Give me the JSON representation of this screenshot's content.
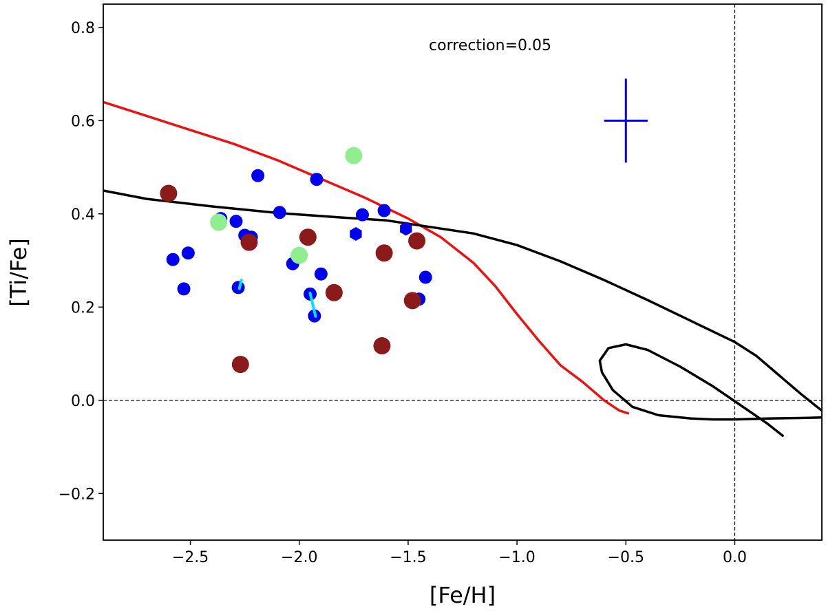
{
  "chart_data": {
    "type": "scatter",
    "title": "",
    "xlabel": "[Fe/H]",
    "ylabel": "[Ti/Fe]",
    "xlim": [
      -2.9,
      0.4
    ],
    "ylim": [
      -0.3,
      0.85
    ],
    "xticks": [
      -2.5,
      -2.0,
      -1.5,
      -1.0,
      -0.5,
      0.0
    ],
    "xtick_labels": [
      "−2.5",
      "−2.0",
      "−1.5",
      "−1.0",
      "−0.5",
      "0.0"
    ],
    "yticks": [
      -0.2,
      0.0,
      0.2,
      0.4,
      0.6,
      0.8
    ],
    "ytick_labels": [
      "−0.2",
      "0.0",
      "0.2",
      "0.4",
      "0.6",
      "0.8"
    ],
    "annotation": "correction=0.05",
    "reference_lines": {
      "x": 0.0,
      "y": 0.0
    },
    "colors": {
      "blue": "#0000ee",
      "darkred": "#8b1a1a",
      "lightgreen": "#90ee90",
      "cyan": "#00e5ff",
      "red": "#ee1111",
      "black": "#000000"
    },
    "series": [
      {
        "name": "blue-circles",
        "marker": "circle",
        "color": "blue",
        "points": [
          [
            -2.58,
            0.302
          ],
          [
            -2.51,
            0.316
          ],
          [
            -2.53,
            0.239
          ],
          [
            -2.36,
            0.39
          ],
          [
            -2.29,
            0.384
          ],
          [
            -2.19,
            0.482
          ],
          [
            -2.25,
            0.354
          ],
          [
            -2.22,
            0.35
          ],
          [
            -2.28,
            0.242
          ],
          [
            -2.09,
            0.403
          ],
          [
            -2.03,
            0.293
          ],
          [
            -1.92,
            0.474
          ],
          [
            -1.9,
            0.271
          ],
          [
            -1.95,
            0.228
          ],
          [
            -1.93,
            0.181
          ],
          [
            -1.71,
            0.398
          ],
          [
            -1.61,
            0.407
          ],
          [
            -1.42,
            0.264
          ],
          [
            -1.45,
            0.217
          ]
        ]
      },
      {
        "name": "blue-hexagons",
        "marker": "hexagon",
        "color": "blue",
        "points": [
          [
            -1.74,
            0.357
          ],
          [
            -1.51,
            0.368
          ]
        ]
      },
      {
        "name": "dark-red-circles",
        "marker": "circle",
        "color": "darkred",
        "points": [
          [
            -2.6,
            0.444
          ],
          [
            -2.23,
            0.339
          ],
          [
            -2.27,
            0.077
          ],
          [
            -1.96,
            0.35
          ],
          [
            -1.84,
            0.231
          ],
          [
            -1.61,
            0.316
          ],
          [
            -1.62,
            0.117
          ],
          [
            -1.46,
            0.342
          ],
          [
            -1.48,
            0.214
          ]
        ]
      },
      {
        "name": "light-green-circles",
        "marker": "circle",
        "color": "lightgreen",
        "points": [
          [
            -2.37,
            0.382
          ],
          [
            -2.0,
            0.311
          ],
          [
            -1.75,
            0.525
          ]
        ]
      }
    ],
    "cyan_segments": [
      [
        [
          -2.275,
          0.24
        ],
        [
          -2.265,
          0.258
        ]
      ],
      [
        [
          -1.95,
          0.23
        ],
        [
          -1.925,
          0.18
        ]
      ]
    ],
    "error_bar": {
      "x": -0.5,
      "y": 0.6,
      "x_err": 0.1,
      "y_err": 0.09,
      "color": "blue"
    },
    "model_lines": [
      {
        "name": "red-model",
        "color": "red",
        "points": [
          [
            -2.9,
            0.64
          ],
          [
            -2.7,
            0.61
          ],
          [
            -2.5,
            0.58
          ],
          [
            -2.3,
            0.55
          ],
          [
            -2.1,
            0.515
          ],
          [
            -1.9,
            0.475
          ],
          [
            -1.7,
            0.435
          ],
          [
            -1.5,
            0.39
          ],
          [
            -1.35,
            0.35
          ],
          [
            -1.2,
            0.295
          ],
          [
            -1.1,
            0.245
          ],
          [
            -1.0,
            0.185
          ],
          [
            -0.9,
            0.128
          ],
          [
            -0.8,
            0.075
          ],
          [
            -0.7,
            0.04
          ],
          [
            -0.6,
            0.0
          ],
          [
            -0.53,
            -0.022
          ],
          [
            -0.49,
            -0.028
          ]
        ]
      },
      {
        "name": "black-model",
        "color": "black",
        "points": [
          [
            -2.9,
            0.45
          ],
          [
            -2.7,
            0.432
          ],
          [
            -2.4,
            0.416
          ],
          [
            -2.1,
            0.402
          ],
          [
            -1.8,
            0.392
          ],
          [
            -1.6,
            0.386
          ],
          [
            -1.4,
            0.372
          ],
          [
            -1.2,
            0.358
          ],
          [
            -1.0,
            0.333
          ],
          [
            -0.8,
            0.298
          ],
          [
            -0.6,
            0.258
          ],
          [
            -0.4,
            0.215
          ],
          [
            -0.2,
            0.17
          ],
          [
            0.0,
            0.125
          ],
          [
            0.1,
            0.095
          ],
          [
            0.2,
            0.055
          ],
          [
            0.3,
            0.015
          ],
          [
            0.38,
            -0.015
          ],
          [
            0.4,
            -0.022
          ]
        ]
      },
      {
        "name": "black-loop",
        "color": "black",
        "points": [
          [
            0.22,
            -0.076
          ],
          [
            0.15,
            -0.05
          ],
          [
            0.05,
            -0.018
          ],
          [
            -0.1,
            0.03
          ],
          [
            -0.25,
            0.072
          ],
          [
            -0.4,
            0.108
          ],
          [
            -0.5,
            0.12
          ],
          [
            -0.58,
            0.112
          ],
          [
            -0.62,
            0.085
          ],
          [
            -0.61,
            0.06
          ],
          [
            -0.56,
            0.022
          ],
          [
            -0.47,
            -0.014
          ],
          [
            -0.35,
            -0.032
          ],
          [
            -0.2,
            -0.039
          ],
          [
            -0.1,
            -0.041
          ],
          [
            0.0,
            -0.041
          ],
          [
            0.15,
            -0.039
          ],
          [
            0.3,
            -0.038
          ],
          [
            0.4,
            -0.037
          ]
        ]
      }
    ]
  }
}
